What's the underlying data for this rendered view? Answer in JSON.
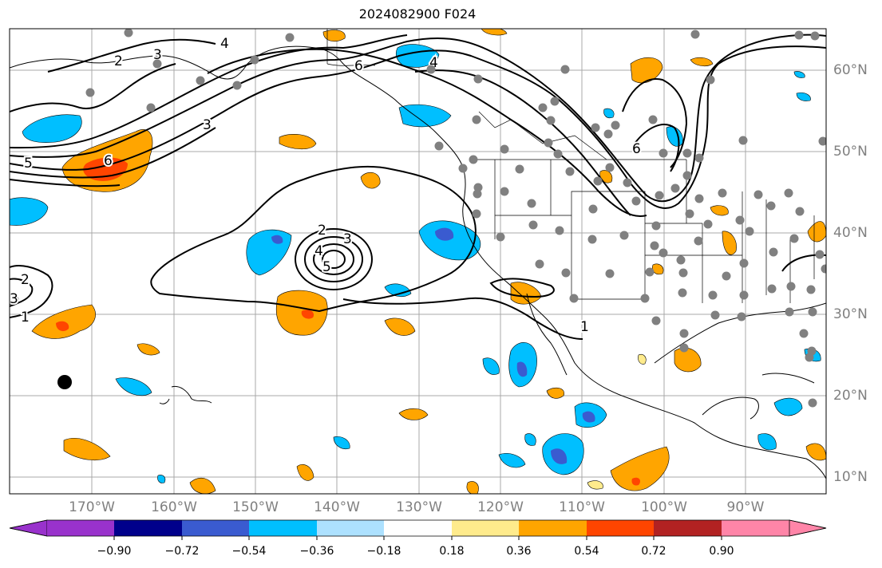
{
  "title": "2024082900 F024",
  "map": {
    "lon_labels": [
      "170°W",
      "160°W",
      "150°W",
      "140°W",
      "130°W",
      "120°W",
      "110°W",
      "100°W",
      "90°W"
    ],
    "lat_labels": [
      "60°N",
      "50°N",
      "40°N",
      "30°N",
      "20°N",
      "10°N"
    ],
    "grid": true,
    "contour_labels": [
      "2",
      "3",
      "4",
      "6",
      "4",
      "6",
      "3",
      "5",
      "6",
      "2",
      "3",
      "4",
      "5",
      "2",
      "3",
      "1",
      "1"
    ]
  },
  "colorbar": {
    "ticks": [
      "−0.90",
      "−0.72",
      "−0.54",
      "−0.36",
      "−0.18",
      "0.18",
      "0.36",
      "0.54",
      "0.72",
      "0.90"
    ],
    "colors": [
      "#9932CC",
      "#00008B",
      "#3A5BD0",
      "#00BFFF",
      "#ADE1FF",
      "#FFFFFF",
      "#FFEB8C",
      "#FFA500",
      "#FF4500",
      "#B22222",
      "#FF85A8"
    ],
    "under_color": "#9932CC",
    "over_color": "#FF85A8"
  },
  "fill_colors": {
    "light_orange": "#FFA500",
    "red": "#FF4500",
    "cyan": "#00BFFF",
    "blue": "#3A5BD0",
    "yellow": "#FFEB8C"
  },
  "station_color": "#808080",
  "marker_color": "#000000"
}
